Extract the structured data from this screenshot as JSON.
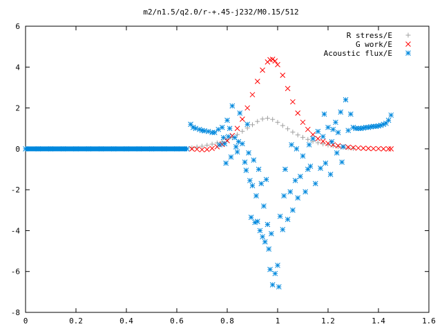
{
  "chart_data": {
    "type": "scatter",
    "title": "m2/n1.5/q2.0/r-+.45-j232/M0.15/512",
    "xlabel": "",
    "ylabel": "",
    "xlim": [
      0,
      1.6
    ],
    "ylim": [
      -8,
      6
    ],
    "xticks": [
      0,
      0.2,
      0.4,
      0.6,
      0.8,
      1,
      1.2,
      1.4,
      1.6
    ],
    "xtick_labels": [
      "0",
      "0.2",
      "0.4",
      "0.6",
      "0.8",
      "1",
      "1.2",
      "1.4",
      "1.6"
    ],
    "yticks": [
      -8,
      -6,
      -4,
      -2,
      0,
      2,
      4,
      6
    ],
    "ytick_labels": [
      "-8",
      "-6",
      "-4",
      "-2",
      "0",
      "2",
      "4",
      "6"
    ],
    "grid": false,
    "legend_position": "top-right",
    "series": [
      {
        "name": "R stress/E",
        "marker": "plus",
        "color": "#a0a0a0",
        "x": [
          0.66,
          0.68,
          0.7,
          0.72,
          0.74,
          0.76,
          0.78,
          0.8,
          0.82,
          0.84,
          0.86,
          0.88,
          0.9,
          0.92,
          0.94,
          0.96,
          0.98,
          1.0,
          1.02,
          1.04,
          1.06,
          1.08,
          1.1,
          1.12,
          1.14,
          1.16,
          1.18,
          1.2,
          1.22,
          1.24,
          1.26,
          1.28,
          1.3
        ],
        "y": [
          0.05,
          0.09,
          0.13,
          0.18,
          0.23,
          0.29,
          0.36,
          0.44,
          0.55,
          0.7,
          0.86,
          1.02,
          1.18,
          1.34,
          1.46,
          1.5,
          1.44,
          1.3,
          1.14,
          0.98,
          0.82,
          0.68,
          0.56,
          0.46,
          0.37,
          0.3,
          0.24,
          0.19,
          0.15,
          0.11,
          0.08,
          0.05,
          0.02
        ]
      },
      {
        "name": "G work/E",
        "marker": "cross",
        "color": "#ff0000",
        "x": [
          0.66,
          0.68,
          0.7,
          0.72,
          0.74,
          0.76,
          0.78,
          0.8,
          0.82,
          0.84,
          0.86,
          0.88,
          0.9,
          0.92,
          0.94,
          0.96,
          0.97,
          0.98,
          0.99,
          1.0,
          1.02,
          1.04,
          1.06,
          1.08,
          1.1,
          1.12,
          1.14,
          1.16,
          1.18,
          1.2,
          1.22,
          1.24,
          1.26,
          1.28,
          1.3,
          1.32,
          1.34,
          1.36,
          1.38,
          1.4,
          1.42,
          1.44,
          1.45
        ],
        "y": [
          0.0,
          -0.02,
          -0.04,
          -0.03,
          0.02,
          0.1,
          0.22,
          0.4,
          0.65,
          1.0,
          1.45,
          2.0,
          2.65,
          3.3,
          3.85,
          4.25,
          4.36,
          4.38,
          4.3,
          4.12,
          3.6,
          2.95,
          2.3,
          1.75,
          1.3,
          0.95,
          0.7,
          0.5,
          0.37,
          0.27,
          0.2,
          0.15,
          0.11,
          0.08,
          0.06,
          0.04,
          0.03,
          0.02,
          0.01,
          0.01,
          0.0,
          0.0,
          0.0
        ]
      },
      {
        "name": "Acoustic flux/E",
        "marker": "star",
        "color": "#0088dd",
        "x": [
          0.0,
          0.05,
          0.1,
          0.15,
          0.2,
          0.25,
          0.3,
          0.35,
          0.4,
          0.45,
          0.5,
          0.55,
          0.6,
          0.64,
          0.655,
          0.665,
          0.675,
          0.69,
          0.7,
          0.71,
          0.725,
          0.74,
          0.75,
          0.765,
          0.77,
          0.78,
          0.785,
          0.79,
          0.795,
          0.8,
          0.805,
          0.81,
          0.815,
          0.82,
          0.83,
          0.835,
          0.84,
          0.845,
          0.85,
          0.86,
          0.87,
          0.875,
          0.88,
          0.885,
          0.89,
          0.895,
          0.9,
          0.905,
          0.91,
          0.915,
          0.92,
          0.925,
          0.93,
          0.935,
          0.94,
          0.945,
          0.95,
          0.955,
          0.96,
          0.965,
          0.97,
          0.975,
          0.98,
          0.99,
          1.0,
          1.005,
          1.01,
          1.02,
          1.025,
          1.03,
          1.04,
          1.05,
          1.055,
          1.06,
          1.07,
          1.075,
          1.08,
          1.09,
          1.1,
          1.11,
          1.12,
          1.125,
          1.13,
          1.14,
          1.15,
          1.16,
          1.17,
          1.18,
          1.185,
          1.19,
          1.2,
          1.21,
          1.215,
          1.22,
          1.23,
          1.235,
          1.24,
          1.25,
          1.255,
          1.26,
          1.27,
          1.28,
          1.29,
          1.3,
          1.31,
          1.32,
          1.33,
          1.34,
          1.35,
          1.36,
          1.37,
          1.38,
          1.39,
          1.4,
          1.41,
          1.42,
          1.43,
          1.44,
          1.45
        ],
        "y": [
          0.0,
          0.0,
          0.0,
          0.0,
          0.0,
          0.0,
          0.0,
          0.0,
          0.0,
          0.0,
          0.0,
          0.0,
          0.0,
          0.0,
          1.2,
          1.05,
          1.0,
          0.95,
          0.9,
          0.88,
          0.85,
          0.8,
          0.8,
          0.95,
          0.2,
          1.05,
          0.55,
          0.25,
          -0.7,
          1.4,
          0.6,
          1.0,
          -0.4,
          2.1,
          0.55,
          0.1,
          -0.15,
          0.35,
          1.75,
          0.25,
          -0.65,
          -1.05,
          1.2,
          -0.2,
          -1.55,
          -3.35,
          -1.8,
          -0.55,
          -3.6,
          -2.3,
          -3.55,
          -1.0,
          -4.0,
          -1.7,
          -4.3,
          -2.8,
          -4.55,
          -1.5,
          -3.7,
          -4.9,
          -5.9,
          -4.15,
          -6.65,
          -6.1,
          -5.7,
          -6.75,
          -3.3,
          -3.95,
          -2.3,
          -1.0,
          -3.45,
          -2.1,
          0.2,
          -3.0,
          -1.55,
          0.0,
          -2.4,
          -1.35,
          -0.35,
          -2.1,
          -1.0,
          0.2,
          -0.85,
          0.5,
          -1.7,
          0.85,
          -0.95,
          0.6,
          1.7,
          -0.7,
          1.05,
          -1.25,
          0.35,
          0.95,
          1.3,
          -0.2,
          0.8,
          1.8,
          -0.65,
          0.1,
          2.4,
          0.9,
          1.7,
          1.05,
          1.0,
          1.0,
          1.0,
          1.02,
          1.05,
          1.05,
          1.08,
          1.1,
          1.1,
          1.12,
          1.15,
          1.2,
          1.25,
          1.4,
          1.65
        ]
      }
    ]
  }
}
